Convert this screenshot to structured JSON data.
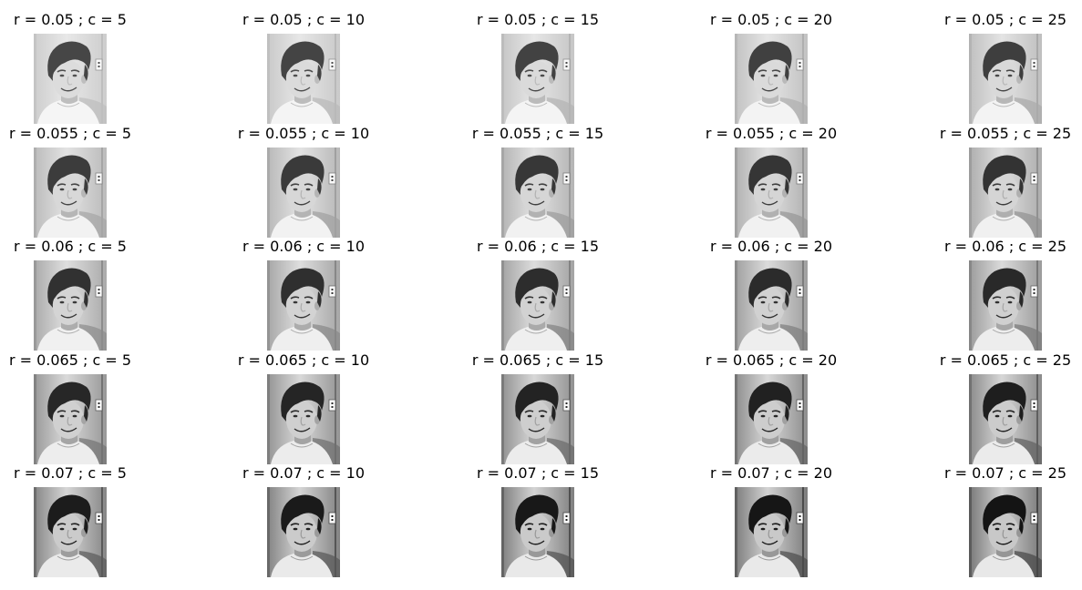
{
  "figure": {
    "rows": [
      {
        "r": "0.05",
        "panels": [
          {
            "title": "r = 0.05 ; c = 5"
          },
          {
            "title": "r = 0.05 ; c = 10"
          },
          {
            "title": "r = 0.05 ; c = 15"
          },
          {
            "title": "r = 0.05 ; c = 20"
          },
          {
            "title": "r = 0.05 ; c = 25"
          }
        ]
      },
      {
        "r": "0.055",
        "panels": [
          {
            "title": "r = 0.055 ; c = 5"
          },
          {
            "title": "r = 0.055 ; c = 10"
          },
          {
            "title": "r = 0.055 ; c = 15"
          },
          {
            "title": "r = 0.055 ; c = 20"
          },
          {
            "title": "r = 0.055 ; c = 25"
          }
        ]
      },
      {
        "r": "0.06",
        "panels": [
          {
            "title": "r = 0.06 ; c = 5"
          },
          {
            "title": "r = 0.06 ; c = 10"
          },
          {
            "title": "r = 0.06 ; c = 15"
          },
          {
            "title": "r = 0.06 ; c = 20"
          },
          {
            "title": "r = 0.06 ; c = 25"
          }
        ]
      },
      {
        "r": "0.065",
        "panels": [
          {
            "title": "r = 0.065 ; c = 5"
          },
          {
            "title": "r = 0.065 ; c = 10"
          },
          {
            "title": "r = 0.065 ; c = 15"
          },
          {
            "title": "r = 0.065 ; c = 20"
          },
          {
            "title": "r = 0.065 ; c = 25"
          }
        ]
      },
      {
        "r": "0.07",
        "panels": [
          {
            "title": "r = 0.07 ; c = 5"
          },
          {
            "title": "r = 0.07 ; c = 10"
          },
          {
            "title": "r = 0.07 ; c = 15"
          },
          {
            "title": "r = 0.07 ; c = 20"
          },
          {
            "title": "r = 0.07 ; c = 25"
          }
        ]
      }
    ],
    "image_subject": "grayscale-portrait-young-man",
    "colors": {
      "background": "#ffffff",
      "text": "#000000"
    }
  }
}
